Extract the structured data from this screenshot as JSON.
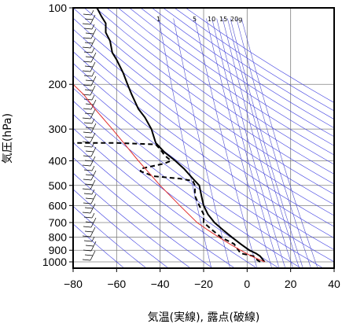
{
  "chart_data": {
    "type": "line",
    "title": "",
    "xlabel": "気温(実線), 露点(破線)",
    "ylabel": "気圧(hPa)",
    "x_unit": "°C",
    "y_scale": "log",
    "xlim": [
      -80,
      40
    ],
    "ylim_hpa": [
      1050,
      100
    ],
    "x_ticks": [
      "−80",
      "−60",
      "−40",
      "−20",
      "0",
      "20",
      "40"
    ],
    "y_ticks": [
      "100",
      "200",
      "300",
      "400",
      "500",
      "600",
      "700",
      "800",
      "900",
      "1000"
    ],
    "grid": true,
    "mixing_ratio_labels": [
      "1",
      "5",
      "10",
      "15",
      "20g"
    ],
    "mixing_ratio_gkg": [
      1,
      2,
      5,
      8,
      10,
      12,
      15,
      18,
      20,
      25,
      30
    ],
    "series": [
      {
        "role": "temperature",
        "style": "solid",
        "color": "#000000",
        "points": [
          {
            "p": 1000,
            "t": 8
          },
          {
            "p": 975,
            "t": 7
          },
          {
            "p": 950,
            "t": 6
          },
          {
            "p": 925,
            "t": 4
          },
          {
            "p": 900,
            "t": 1
          },
          {
            "p": 850,
            "t": -3
          },
          {
            "p": 800,
            "t": -7
          },
          {
            "p": 750,
            "t": -11
          },
          {
            "p": 700,
            "t": -15
          },
          {
            "p": 650,
            "t": -18
          },
          {
            "p": 600,
            "t": -20
          },
          {
            "p": 550,
            "t": -21
          },
          {
            "p": 500,
            "t": -22
          },
          {
            "p": 470,
            "t": -25
          },
          {
            "p": 430,
            "t": -29
          },
          {
            "p": 400,
            "t": -33
          },
          {
            "p": 370,
            "t": -38
          },
          {
            "p": 340,
            "t": -42
          },
          {
            "p": 320,
            "t": -43
          },
          {
            "p": 300,
            "t": -44
          },
          {
            "p": 270,
            "t": -47
          },
          {
            "p": 250,
            "t": -50
          },
          {
            "p": 220,
            "t": -53
          },
          {
            "p": 200,
            "t": -55
          },
          {
            "p": 180,
            "t": -57
          },
          {
            "p": 160,
            "t": -60
          },
          {
            "p": 150,
            "t": -62
          },
          {
            "p": 135,
            "t": -63
          },
          {
            "p": 125,
            "t": -65
          },
          {
            "p": 115,
            "t": -65
          },
          {
            "p": 108,
            "t": -67
          },
          {
            "p": 100,
            "t": -69
          }
        ]
      },
      {
        "role": "dew point",
        "style": "dashed",
        "color": "#000000",
        "points": [
          {
            "p": 1000,
            "t": 6
          },
          {
            "p": 975,
            "t": 4
          },
          {
            "p": 950,
            "t": 3
          },
          {
            "p": 925,
            "t": -3
          },
          {
            "p": 900,
            "t": -4
          },
          {
            "p": 850,
            "t": -6
          },
          {
            "p": 800,
            "t": -12
          },
          {
            "p": 750,
            "t": -16
          },
          {
            "p": 700,
            "t": -20
          },
          {
            "p": 650,
            "t": -20
          },
          {
            "p": 600,
            "t": -22
          },
          {
            "p": 550,
            "t": -24
          },
          {
            "p": 500,
            "t": -24
          },
          {
            "p": 480,
            "t": -25
          },
          {
            "p": 470,
            "t": -31
          },
          {
            "p": 460,
            "t": -43
          },
          {
            "p": 440,
            "t": -49
          },
          {
            "p": 430,
            "t": -49
          },
          {
            "p": 410,
            "t": -38
          },
          {
            "p": 400,
            "t": -35
          },
          {
            "p": 380,
            "t": -38
          },
          {
            "p": 360,
            "t": -40
          },
          {
            "p": 345,
            "t": -42
          },
          {
            "p": 340,
            "t": -60
          },
          {
            "p": 340,
            "t": -80
          }
        ]
      },
      {
        "role": "parcel",
        "style": "solid",
        "color": "#e03030",
        "points": [
          {
            "p": 1000,
            "t": 8
          },
          {
            "p": 950,
            "t": 2
          },
          {
            "p": 900,
            "t": -3
          },
          {
            "p": 850,
            "t": -8
          },
          {
            "p": 800,
            "t": -13
          },
          {
            "p": 750,
            "t": -18
          },
          {
            "p": 700,
            "t": -23
          },
          {
            "p": 600,
            "t": -31
          },
          {
            "p": 500,
            "t": -40
          },
          {
            "p": 400,
            "t": -50
          },
          {
            "p": 300,
            "t": -62
          },
          {
            "p": 250,
            "t": -70
          },
          {
            "p": 220,
            "t": -75
          },
          {
            "p": 200,
            "t": -80
          }
        ]
      }
    ],
    "colors": {
      "frame": "#000000",
      "grid": "#808080",
      "dry_adiabat": "#3a3ae0",
      "mixing_ratio": "#5050d0",
      "parcel": "#e03030",
      "wind_barb": "#000000"
    }
  }
}
